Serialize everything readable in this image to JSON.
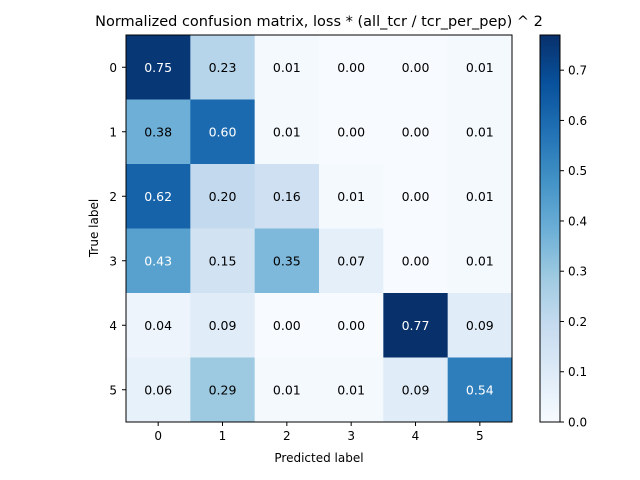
{
  "chart_data": {
    "type": "heatmap",
    "title": "Normalized confusion matrix, loss * (all_tcr / tcr_per_pep) ^ 2",
    "xlabel": "Predicted label",
    "ylabel": "True label",
    "x_categories": [
      "0",
      "1",
      "2",
      "3",
      "4",
      "5"
    ],
    "y_categories": [
      "0",
      "1",
      "2",
      "3",
      "4",
      "5"
    ],
    "values": [
      [
        0.75,
        0.23,
        0.01,
        0.0,
        0.0,
        0.01
      ],
      [
        0.38,
        0.6,
        0.01,
        0.0,
        0.0,
        0.01
      ],
      [
        0.62,
        0.2,
        0.16,
        0.01,
        0.0,
        0.01
      ],
      [
        0.43,
        0.15,
        0.35,
        0.07,
        0.0,
        0.01
      ],
      [
        0.04,
        0.09,
        0.0,
        0.0,
        0.77,
        0.09
      ],
      [
        0.06,
        0.29,
        0.01,
        0.01,
        0.09,
        0.54
      ]
    ],
    "cell_labels": [
      [
        "0.75",
        "0.23",
        "0.01",
        "0.00",
        "0.00",
        "0.01"
      ],
      [
        "0.38",
        "0.60",
        "0.01",
        "0.00",
        "0.00",
        "0.01"
      ],
      [
        "0.62",
        "0.20",
        "0.16",
        "0.01",
        "0.00",
        "0.01"
      ],
      [
        "0.43",
        "0.15",
        "0.35",
        "0.07",
        "0.00",
        "0.01"
      ],
      [
        "0.04",
        "0.09",
        "0.00",
        "0.00",
        "0.77",
        "0.09"
      ],
      [
        "0.06",
        "0.29",
        "0.01",
        "0.01",
        "0.09",
        "0.54"
      ]
    ],
    "colormap": "Blues",
    "color_range": [
      0.0,
      0.77
    ],
    "text_color_light": "#ffffff",
    "text_color_dark": "#000000",
    "colorbar": {
      "ticks": [
        0.0,
        0.1,
        0.2,
        0.3,
        0.4,
        0.5,
        0.6,
        0.7
      ],
      "tick_labels": [
        "0.0",
        "0.1",
        "0.2",
        "0.3",
        "0.4",
        "0.5",
        "0.6",
        "0.7"
      ]
    },
    "grid": false
  }
}
